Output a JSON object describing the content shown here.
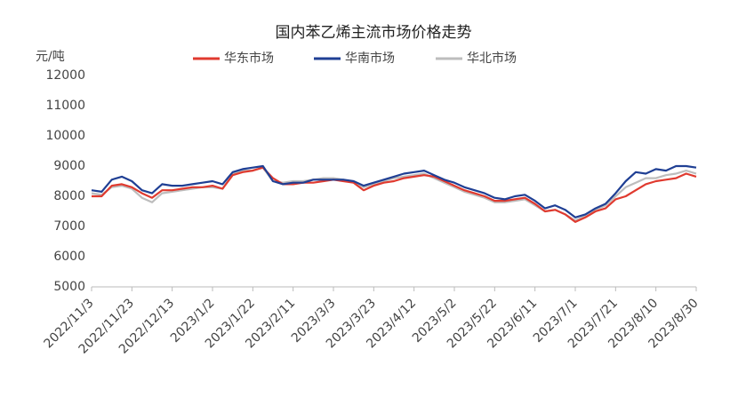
{
  "chart_data": {
    "type": "line",
    "title": "国内苯乙烯主流市场价格走势",
    "y_label": "元/吨",
    "categories": [
      "2022/11/3",
      null,
      null,
      null,
      "2022/11/23",
      null,
      null,
      null,
      "2022/12/13",
      null,
      null,
      null,
      "2023/1/2",
      null,
      null,
      null,
      "2023/1/22",
      null,
      null,
      null,
      "2023/2/11",
      null,
      null,
      null,
      "2023/3/3",
      null,
      null,
      null,
      "2023/3/23",
      null,
      null,
      null,
      "2023/4/12",
      null,
      null,
      null,
      "2023/5/2",
      null,
      null,
      null,
      "2023/5/22",
      null,
      null,
      null,
      "2023/6/11",
      null,
      null,
      null,
      "2023/7/1",
      null,
      null,
      null,
      "2023/7/21",
      null,
      null,
      null,
      "2023/8/10",
      null,
      null,
      null,
      "2023/8/30"
    ],
    "series": [
      {
        "name": "华东市场",
        "color": "#e03a2f",
        "values": [
          8000,
          8000,
          8350,
          8400,
          8300,
          8100,
          7950,
          8200,
          8200,
          8250,
          8300,
          8300,
          8350,
          8250,
          8700,
          8800,
          8850,
          8950,
          8600,
          8400,
          8400,
          8450,
          8450,
          8500,
          8550,
          8500,
          8450,
          8200,
          8350,
          8450,
          8500,
          8600,
          8650,
          8700,
          8650,
          8500,
          8350,
          8200,
          8100,
          8000,
          7850,
          7850,
          7900,
          7950,
          7750,
          7500,
          7550,
          7400,
          7150,
          7300,
          7500,
          7600,
          7900,
          8000,
          8200,
          8400,
          8500,
          8550,
          8600,
          8750,
          8650
        ]
      },
      {
        "name": "华南市场",
        "color": "#1f3f94",
        "values": [
          8200,
          8150,
          8550,
          8650,
          8500,
          8200,
          8100,
          8400,
          8350,
          8350,
          8400,
          8450,
          8500,
          8400,
          8800,
          8900,
          8950,
          9000,
          8500,
          8400,
          8450,
          8450,
          8550,
          8550,
          8550,
          8550,
          8500,
          8350,
          8450,
          8550,
          8650,
          8750,
          8800,
          8850,
          8700,
          8550,
          8450,
          8300,
          8200,
          8100,
          7950,
          7900,
          8000,
          8050,
          7850,
          7600,
          7700,
          7550,
          7300,
          7400,
          7600,
          7750,
          8100,
          8500,
          8800,
          8750,
          8900,
          8850,
          9000,
          9000,
          8950
        ]
      },
      {
        "name": "华北市场",
        "color": "#bdbdbd",
        "values": [
          8100,
          8050,
          8300,
          8350,
          8250,
          7950,
          7800,
          8100,
          8150,
          8200,
          8250,
          8300,
          8300,
          8250,
          8750,
          8850,
          8850,
          8950,
          8500,
          8450,
          8500,
          8500,
          8550,
          8600,
          8600,
          8550,
          8450,
          8300,
          8400,
          8500,
          8600,
          8650,
          8700,
          8750,
          8600,
          8450,
          8300,
          8150,
          8050,
          7950,
          7800,
          7800,
          7850,
          7900,
          7700,
          7500,
          7550,
          7400,
          7200,
          7350,
          7550,
          7700,
          8000,
          8300,
          8450,
          8600,
          8600,
          8700,
          8750,
          8850,
          8750
        ]
      }
    ],
    "ylim": [
      5000,
      12000
    ],
    "yticks": [
      5000,
      6000,
      7000,
      8000,
      9000,
      10000,
      11000,
      12000
    ],
    "grid": false
  }
}
